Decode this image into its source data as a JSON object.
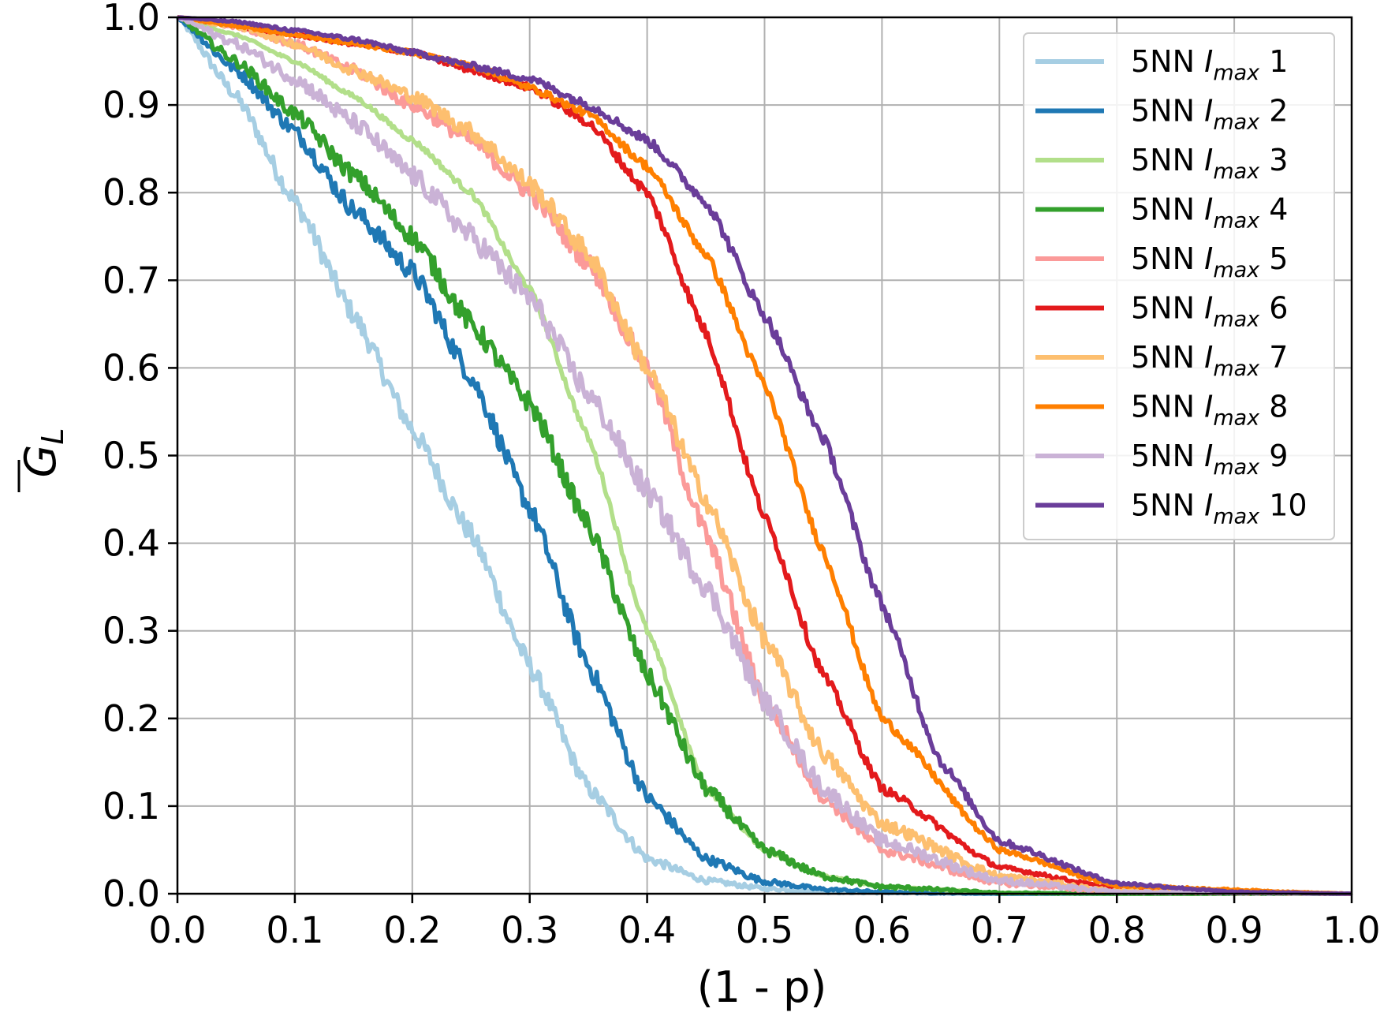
{
  "chart_data": {
    "type": "line",
    "xlabel": "(1 - p)",
    "ylabel": "G_L",
    "xlim": [
      0,
      1
    ],
    "ylim": [
      0,
      1
    ],
    "xticks": [
      "0.0",
      "0.1",
      "0.2",
      "0.3",
      "0.4",
      "0.5",
      "0.6",
      "0.7",
      "0.8",
      "0.9",
      "1.0"
    ],
    "yticks": [
      "0.0",
      "0.1",
      "0.2",
      "0.3",
      "0.4",
      "0.5",
      "0.6",
      "0.7",
      "0.8",
      "0.9",
      "1.0"
    ],
    "grid": true,
    "legend_position": "top-right",
    "series": [
      {
        "name": "5NN I_max 1",
        "prefix": "5NN ",
        "var": "I",
        "sub": "max",
        "num": "1",
        "color": "#a6cee3",
        "noise": 0.012,
        "x": [
          0,
          0.05,
          0.1,
          0.15,
          0.2,
          0.25,
          0.3,
          0.35,
          0.4,
          0.45,
          0.5,
          0.55,
          0.6,
          0.7,
          0.8,
          1.0
        ],
        "y": [
          1.0,
          0.91,
          0.79,
          0.66,
          0.53,
          0.41,
          0.26,
          0.12,
          0.04,
          0.015,
          0.006,
          0.002,
          0.001,
          0.0,
          0.0,
          0.0
        ]
      },
      {
        "name": "5NN I_max 2",
        "prefix": "5NN ",
        "var": "I",
        "sub": "max",
        "num": "2",
        "color": "#1f78b4",
        "noise": 0.012,
        "x": [
          0,
          0.05,
          0.1,
          0.15,
          0.2,
          0.25,
          0.3,
          0.35,
          0.4,
          0.45,
          0.5,
          0.55,
          0.6,
          0.7,
          0.8,
          1.0
        ],
        "y": [
          1.0,
          0.94,
          0.87,
          0.78,
          0.71,
          0.59,
          0.44,
          0.26,
          0.11,
          0.04,
          0.014,
          0.005,
          0.002,
          0.0,
          0.0,
          0.0
        ]
      },
      {
        "name": "5NN I_max 3",
        "prefix": "5NN ",
        "var": "I",
        "sub": "max",
        "num": "3",
        "color": "#b2df8a",
        "noise": 0.004,
        "x": [
          0,
          0.05,
          0.1,
          0.15,
          0.2,
          0.25,
          0.3,
          0.35,
          0.4,
          0.45,
          0.5,
          0.55,
          0.6,
          0.7,
          0.8,
          1.0
        ],
        "y": [
          1.0,
          0.98,
          0.95,
          0.91,
          0.86,
          0.8,
          0.69,
          0.52,
          0.3,
          0.12,
          0.05,
          0.02,
          0.008,
          0.001,
          0.0,
          0.0
        ]
      },
      {
        "name": "5NN I_max 4",
        "prefix": "5NN ",
        "var": "I",
        "sub": "max",
        "num": "4",
        "color": "#33a02c",
        "noise": 0.012,
        "x": [
          0,
          0.05,
          0.1,
          0.15,
          0.2,
          0.25,
          0.3,
          0.35,
          0.4,
          0.45,
          0.5,
          0.55,
          0.6,
          0.7,
          0.8,
          1.0
        ],
        "y": [
          1.0,
          0.95,
          0.89,
          0.82,
          0.75,
          0.65,
          0.56,
          0.42,
          0.25,
          0.12,
          0.05,
          0.02,
          0.008,
          0.001,
          0.0,
          0.0
        ]
      },
      {
        "name": "5NN I_max 5",
        "prefix": "5NN ",
        "var": "I",
        "sub": "max",
        "num": "5",
        "color": "#fb9a99",
        "noise": 0.012,
        "x": [
          0,
          0.05,
          0.1,
          0.15,
          0.2,
          0.25,
          0.3,
          0.35,
          0.4,
          0.45,
          0.5,
          0.55,
          0.6,
          0.7,
          0.8,
          1.0
        ],
        "y": [
          1.0,
          0.99,
          0.97,
          0.94,
          0.9,
          0.86,
          0.8,
          0.72,
          0.6,
          0.41,
          0.22,
          0.11,
          0.05,
          0.012,
          0.002,
          0.0
        ]
      },
      {
        "name": "5NN I_max 6",
        "prefix": "5NN ",
        "var": "I",
        "sub": "max",
        "num": "6",
        "color": "#e31a1c",
        "noise": 0.007,
        "x": [
          0,
          0.05,
          0.1,
          0.15,
          0.2,
          0.25,
          0.3,
          0.35,
          0.4,
          0.45,
          0.5,
          0.55,
          0.6,
          0.7,
          0.8,
          1.0
        ],
        "y": [
          1.0,
          0.99,
          0.98,
          0.97,
          0.96,
          0.94,
          0.92,
          0.88,
          0.8,
          0.64,
          0.43,
          0.25,
          0.12,
          0.03,
          0.006,
          0.0
        ]
      },
      {
        "name": "5NN I_max 7",
        "prefix": "5NN ",
        "var": "I",
        "sub": "max",
        "num": "7",
        "color": "#fdbf6f",
        "noise": 0.012,
        "x": [
          0,
          0.05,
          0.1,
          0.15,
          0.2,
          0.25,
          0.3,
          0.35,
          0.4,
          0.45,
          0.5,
          0.55,
          0.6,
          0.7,
          0.8,
          1.0
        ],
        "y": [
          1.0,
          0.99,
          0.97,
          0.94,
          0.91,
          0.87,
          0.81,
          0.73,
          0.6,
          0.45,
          0.29,
          0.16,
          0.08,
          0.02,
          0.003,
          0.0
        ]
      },
      {
        "name": "5NN I_max 8",
        "prefix": "5NN ",
        "var": "I",
        "sub": "max",
        "num": "8",
        "color": "#ff7f00",
        "noise": 0.006,
        "x": [
          0,
          0.05,
          0.1,
          0.15,
          0.2,
          0.25,
          0.3,
          0.35,
          0.4,
          0.45,
          0.5,
          0.55,
          0.6,
          0.7,
          0.8,
          1.0
        ],
        "y": [
          1.0,
          0.99,
          0.98,
          0.97,
          0.96,
          0.945,
          0.92,
          0.89,
          0.83,
          0.73,
          0.58,
          0.39,
          0.2,
          0.05,
          0.009,
          0.0
        ]
      },
      {
        "name": "5NN I_max 9",
        "prefix": "5NN ",
        "var": "I",
        "sub": "max",
        "num": "9",
        "color": "#cab2d6",
        "noise": 0.014,
        "x": [
          0,
          0.05,
          0.1,
          0.15,
          0.2,
          0.25,
          0.3,
          0.35,
          0.4,
          0.45,
          0.5,
          0.55,
          0.6,
          0.7,
          0.8,
          1.0
        ],
        "y": [
          1.0,
          0.97,
          0.93,
          0.88,
          0.82,
          0.75,
          0.68,
          0.57,
          0.46,
          0.35,
          0.22,
          0.12,
          0.06,
          0.015,
          0.002,
          0.0
        ]
      },
      {
        "name": "5NN I_max 10",
        "prefix": "5NN ",
        "var": "I",
        "sub": "max",
        "num": "10",
        "color": "#6a3d9a",
        "noise": 0.007,
        "x": [
          0,
          0.05,
          0.1,
          0.15,
          0.2,
          0.25,
          0.3,
          0.35,
          0.4,
          0.45,
          0.5,
          0.55,
          0.6,
          0.65,
          0.7,
          0.8,
          0.9,
          1.0
        ],
        "y": [
          1.0,
          0.995,
          0.985,
          0.975,
          0.96,
          0.945,
          0.93,
          0.9,
          0.86,
          0.79,
          0.66,
          0.52,
          0.33,
          0.15,
          0.06,
          0.012,
          0.002,
          0.0
        ]
      }
    ]
  }
}
